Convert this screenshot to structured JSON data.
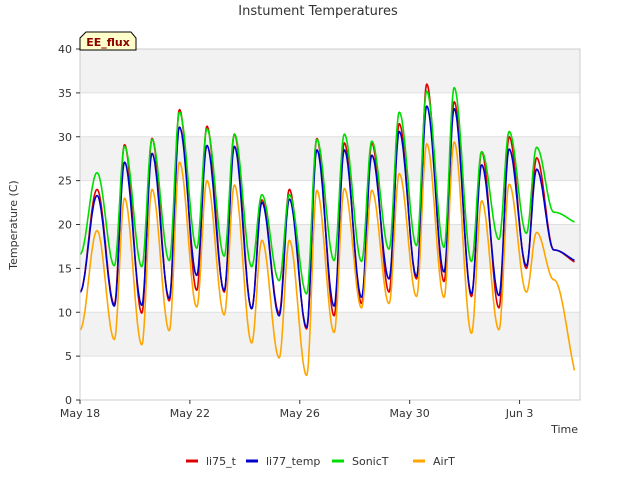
{
  "chart_data": {
    "type": "line",
    "title": "Instument Temperatures",
    "xlabel": "Time",
    "ylabel": "Temperature (C)",
    "site_tag": "EE_flux",
    "x_ticks": [
      "May 18",
      "May 22",
      "May 26",
      "May 30",
      "Jun 3"
    ],
    "x_tick_days": [
      0,
      4,
      8,
      12,
      16
    ],
    "xlim_days": [
      0,
      18.2
    ],
    "x_axis_start": "May 18",
    "ylim": [
      0,
      40
    ],
    "y_ticks": [
      0,
      5,
      10,
      15,
      20,
      25,
      30,
      35,
      40
    ],
    "grid": "horizontal bands",
    "legend_position": "bottom",
    "series": [
      {
        "name": "li75_t",
        "color": "#dd0000",
        "daily_min": [
          12.3,
          10.9,
          9.9,
          11.3,
          12.5,
          12.3,
          10.4,
          9.9,
          8.1,
          9.6,
          11.0,
          12.3,
          13.8,
          13.5,
          11.8,
          10.5,
          15.0,
          17.1,
          15.5
        ],
        "daily_max": [
          24.0,
          29.1,
          29.8,
          33.1,
          31.2,
          30.3,
          22.8,
          24.0,
          29.8,
          29.3,
          29.3,
          31.5,
          36.0,
          34.0,
          28.3,
          30.0,
          27.6
        ]
      },
      {
        "name": "li77_temp",
        "color": "#0000cc",
        "daily_min": [
          12.3,
          10.7,
          10.8,
          11.6,
          14.2,
          12.5,
          10.4,
          9.6,
          8.3,
          10.7,
          11.7,
          13.8,
          14.1,
          14.6,
          12.1,
          11.9,
          15.3,
          17.1,
          15.7
        ],
        "daily_max": [
          23.3,
          27.1,
          28.1,
          31.1,
          29.0,
          28.9,
          22.5,
          22.9,
          28.5,
          28.5,
          27.9,
          30.6,
          33.5,
          33.2,
          26.8,
          28.6,
          26.3
        ]
      },
      {
        "name": "SonicT",
        "color": "#00dd00",
        "daily_min": [
          16.6,
          15.3,
          15.2,
          15.9,
          17.3,
          16.4,
          15.2,
          13.6,
          12.1,
          15.9,
          15.8,
          17.2,
          17.6,
          17.4,
          15.8,
          18.3,
          19.0,
          21.4,
          20.1
        ],
        "daily_max": [
          25.9,
          28.9,
          29.7,
          32.8,
          30.9,
          30.3,
          23.4,
          23.4,
          29.7,
          30.3,
          29.5,
          32.8,
          35.2,
          35.6,
          28.3,
          30.6,
          28.8
        ]
      },
      {
        "name": "AirT",
        "color": "#ffa500",
        "daily_min": [
          8.0,
          6.9,
          6.3,
          7.9,
          10.6,
          9.7,
          6.5,
          4.8,
          2.8,
          7.7,
          10.5,
          11.0,
          11.8,
          11.7,
          7.6,
          8.0,
          12.3,
          13.7,
          1.6
        ],
        "daily_max": [
          19.3,
          23.0,
          24.0,
          27.1,
          25.0,
          24.5,
          18.2,
          18.2,
          23.9,
          24.1,
          23.9,
          25.8,
          29.2,
          29.4,
          22.7,
          24.6,
          19.1
        ]
      }
    ]
  }
}
